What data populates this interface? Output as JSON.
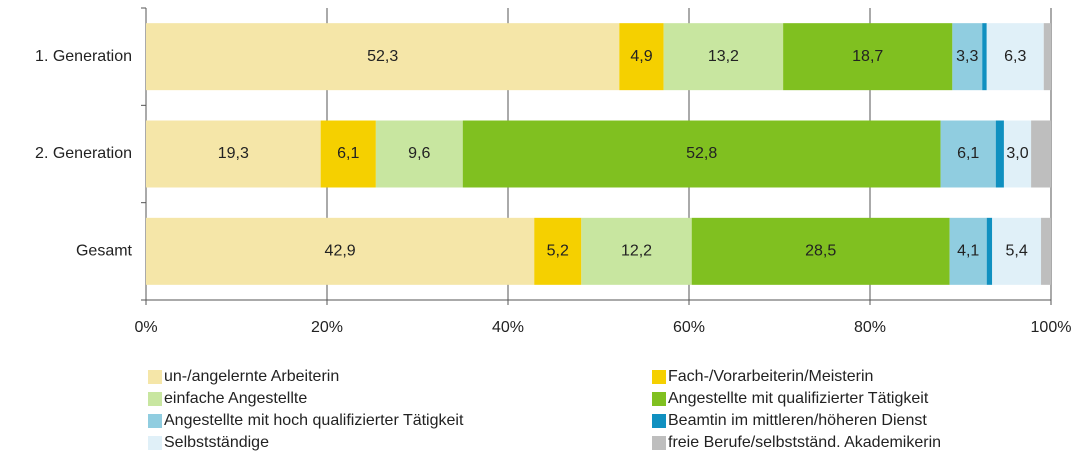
{
  "chart_data": {
    "type": "stacked_barh",
    "categories": [
      "1. Generation",
      "2. Generation",
      "Gesamt"
    ],
    "series": [
      {
        "name": "un-/angelernte Arbeiterin",
        "color": "#f5e6a8",
        "values": [
          52.3,
          19.3,
          42.9
        ],
        "value_labels": [
          "52,3",
          "19,3",
          "42,9"
        ]
      },
      {
        "name": "Fach-/Vorarbeiterin/Meisterin",
        "color": "#f5d000",
        "values": [
          4.9,
          6.1,
          5.2
        ],
        "value_labels": [
          "4,9",
          "6,1",
          "5,2"
        ]
      },
      {
        "name": "einfache Angestellte",
        "color": "#c8e6a0",
        "values": [
          13.2,
          9.6,
          12.2
        ],
        "value_labels": [
          "13,2",
          "9,6",
          "12,2"
        ]
      },
      {
        "name": "Angestellte mit qualifizierter Tätigkeit",
        "color": "#80c020",
        "values": [
          18.7,
          52.8,
          28.5
        ],
        "value_labels": [
          "18,7",
          "52,8",
          "28,5"
        ]
      },
      {
        "name": "Angestellte mit hoch qualifizierter Tätigkeit",
        "color": "#90cde0",
        "values": [
          3.3,
          6.1,
          4.1
        ],
        "value_labels": [
          "3,3",
          "6,1",
          "4,1"
        ]
      },
      {
        "name": "Beamtin im mittleren/höheren Dienst",
        "color": "#1090c0",
        "values": [
          0.5,
          0.9,
          0.6
        ],
        "value_labels": [
          null,
          null,
          null
        ]
      },
      {
        "name": "Selbstständige",
        "color": "#e0f0f8",
        "values": [
          6.3,
          3.0,
          5.4
        ],
        "value_labels": [
          "6,3",
          "3,0",
          "5,4"
        ]
      },
      {
        "name": "freie Berufe/selbstständ. Akademikerin",
        "color": "#bebebe",
        "values": [
          0.8,
          2.2,
          1.1
        ],
        "value_labels": [
          null,
          null,
          null
        ]
      }
    ],
    "xlim": [
      0,
      100
    ],
    "xticks": [
      {
        "value": 0,
        "label": "0%"
      },
      {
        "value": 20,
        "label": "20%"
      },
      {
        "value": 40,
        "label": "40%"
      },
      {
        "value": 60,
        "label": "60%"
      },
      {
        "value": 80,
        "label": "80%"
      },
      {
        "value": 100,
        "label": "100%"
      }
    ],
    "grid": true,
    "legend": "bottom"
  }
}
